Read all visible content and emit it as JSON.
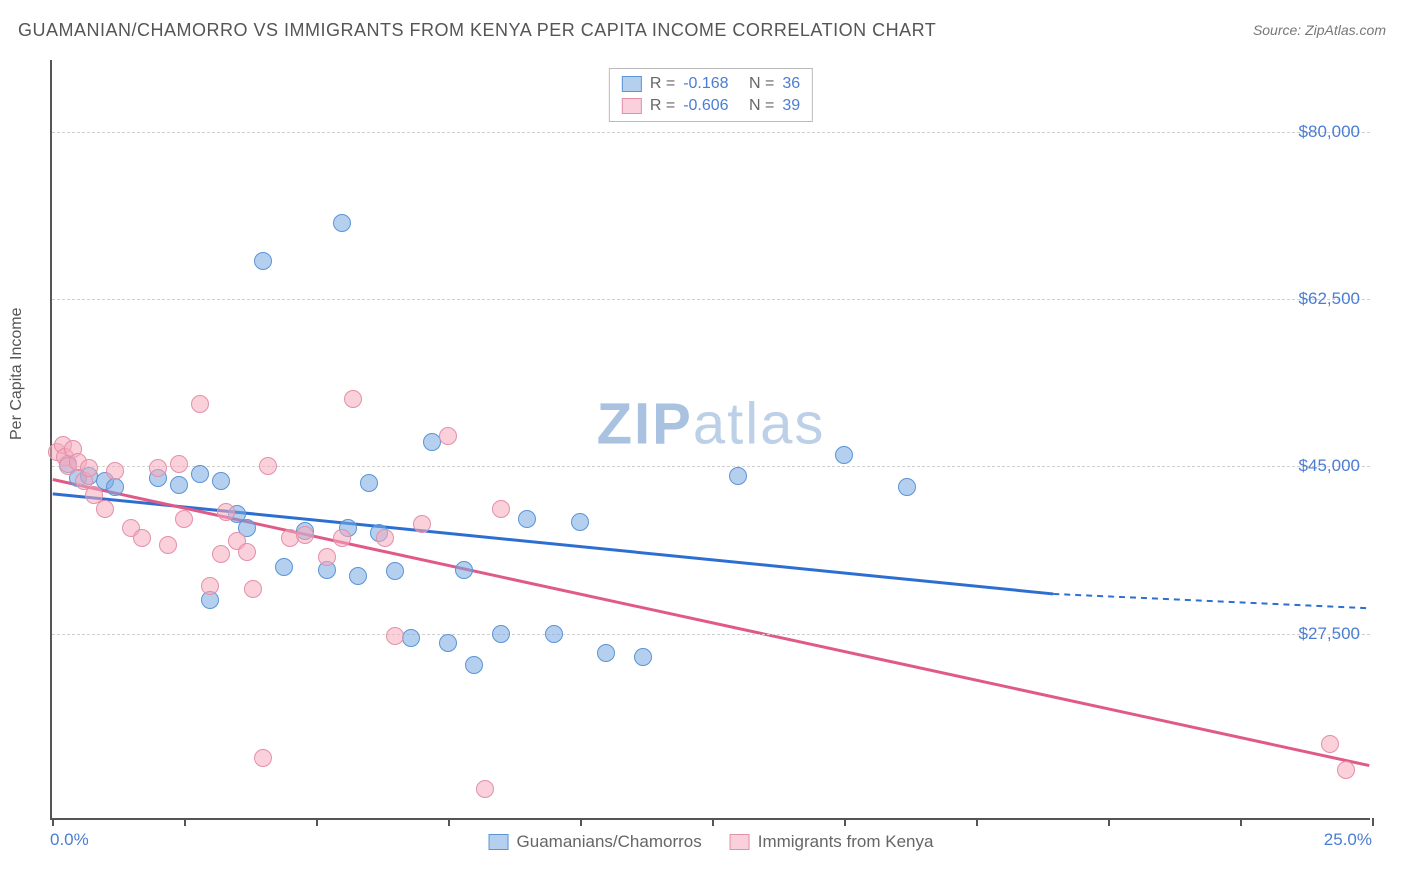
{
  "title": "GUAMANIAN/CHAMORRO VS IMMIGRANTS FROM KENYA PER CAPITA INCOME CORRELATION CHART",
  "source": "Source: ZipAtlas.com",
  "watermark_zip": "ZIP",
  "watermark_atlas": "atlas",
  "y_axis": {
    "label": "Per Capita Income",
    "min": 8000,
    "max": 87500,
    "ticks": [
      27500,
      45000,
      62500,
      80000
    ],
    "tick_labels": [
      "$27,500",
      "$45,000",
      "$62,500",
      "$80,000"
    ],
    "tick_color": "#4a7dd4",
    "grid_color": "#d0d0d0"
  },
  "x_axis": {
    "min": 0,
    "max": 25,
    "tick_positions": [
      0,
      2.5,
      5,
      7.5,
      10,
      12.5,
      15,
      17.5,
      20,
      22.5,
      25
    ],
    "left_label": "0.0%",
    "right_label": "25.0%",
    "label_color": "#4a7dd4"
  },
  "series": [
    {
      "name": "Guamanians/Chamorros",
      "fill_color": "rgba(120,170,225,0.55)",
      "stroke_color": "#5a94d6",
      "line_color": "#2d6fd1",
      "marker_radius": 9,
      "R_label": "R =",
      "R_value": "-0.168",
      "N_label": "N =",
      "N_value": "36",
      "trend": {
        "x1": 0,
        "y1": 42000,
        "x2_solid": 19,
        "y2_solid": 31500,
        "x2_dash": 25,
        "y2_dash": 30000
      },
      "points": [
        {
          "x": 0.3,
          "y": 45200
        },
        {
          "x": 0.5,
          "y": 43800
        },
        {
          "x": 0.7,
          "y": 44000
        },
        {
          "x": 1.0,
          "y": 43500
        },
        {
          "x": 1.2,
          "y": 42800
        },
        {
          "x": 2.0,
          "y": 43800
        },
        {
          "x": 2.4,
          "y": 43000
        },
        {
          "x": 2.8,
          "y": 44200
        },
        {
          "x": 3.0,
          "y": 31000
        },
        {
          "x": 3.2,
          "y": 43500
        },
        {
          "x": 3.5,
          "y": 40000
        },
        {
          "x": 3.7,
          "y": 38500
        },
        {
          "x": 4.0,
          "y": 66500
        },
        {
          "x": 4.4,
          "y": 34500
        },
        {
          "x": 4.8,
          "y": 38200
        },
        {
          "x": 5.2,
          "y": 34200
        },
        {
          "x": 5.5,
          "y": 70500
        },
        {
          "x": 5.6,
          "y": 38500
        },
        {
          "x": 5.8,
          "y": 33500
        },
        {
          "x": 6.0,
          "y": 43200
        },
        {
          "x": 6.2,
          "y": 38000
        },
        {
          "x": 6.5,
          "y": 34000
        },
        {
          "x": 6.8,
          "y": 27000
        },
        {
          "x": 7.2,
          "y": 47500
        },
        {
          "x": 7.5,
          "y": 26500
        },
        {
          "x": 7.8,
          "y": 34200
        },
        {
          "x": 8.0,
          "y": 24200
        },
        {
          "x": 8.5,
          "y": 27500
        },
        {
          "x": 9.0,
          "y": 39500
        },
        {
          "x": 9.5,
          "y": 27500
        },
        {
          "x": 10.0,
          "y": 39200
        },
        {
          "x": 10.5,
          "y": 25500
        },
        {
          "x": 11.2,
          "y": 25000
        },
        {
          "x": 13.0,
          "y": 44000
        },
        {
          "x": 15.0,
          "y": 46200
        },
        {
          "x": 16.2,
          "y": 42800
        }
      ]
    },
    {
      "name": "Immigrants from Kenya",
      "fill_color": "rgba(245,170,190,0.55)",
      "stroke_color": "#e390a8",
      "line_color": "#e05a88",
      "marker_radius": 9,
      "R_label": "R =",
      "R_value": "-0.606",
      "N_label": "N =",
      "N_value": "39",
      "trend": {
        "x1": 0,
        "y1": 43500,
        "x2_solid": 25,
        "y2_solid": 13500,
        "x2_dash": 25,
        "y2_dash": 13500
      },
      "points": [
        {
          "x": 0.1,
          "y": 46500
        },
        {
          "x": 0.2,
          "y": 47200
        },
        {
          "x": 0.25,
          "y": 46000
        },
        {
          "x": 0.3,
          "y": 45000
        },
        {
          "x": 0.4,
          "y": 46800
        },
        {
          "x": 0.5,
          "y": 45500
        },
        {
          "x": 0.6,
          "y": 43500
        },
        {
          "x": 0.7,
          "y": 44800
        },
        {
          "x": 0.8,
          "y": 42000
        },
        {
          "x": 1.0,
          "y": 40500
        },
        {
          "x": 1.2,
          "y": 44500
        },
        {
          "x": 1.5,
          "y": 38500
        },
        {
          "x": 1.7,
          "y": 37500
        },
        {
          "x": 2.0,
          "y": 44800
        },
        {
          "x": 2.2,
          "y": 36800
        },
        {
          "x": 2.4,
          "y": 45200
        },
        {
          "x": 2.5,
          "y": 39500
        },
        {
          "x": 2.8,
          "y": 51500
        },
        {
          "x": 3.0,
          "y": 32500
        },
        {
          "x": 3.2,
          "y": 35800
        },
        {
          "x": 3.3,
          "y": 40200
        },
        {
          "x": 3.5,
          "y": 37200
        },
        {
          "x": 3.7,
          "y": 36000
        },
        {
          "x": 3.8,
          "y": 32200
        },
        {
          "x": 4.0,
          "y": 14500
        },
        {
          "x": 4.1,
          "y": 45000
        },
        {
          "x": 4.5,
          "y": 37500
        },
        {
          "x": 4.8,
          "y": 37800
        },
        {
          "x": 5.2,
          "y": 35500
        },
        {
          "x": 5.5,
          "y": 37500
        },
        {
          "x": 5.7,
          "y": 52000
        },
        {
          "x": 6.3,
          "y": 37500
        },
        {
          "x": 6.5,
          "y": 27200
        },
        {
          "x": 7.0,
          "y": 39000
        },
        {
          "x": 7.5,
          "y": 48200
        },
        {
          "x": 8.2,
          "y": 11200
        },
        {
          "x": 8.5,
          "y": 40500
        },
        {
          "x": 24.2,
          "y": 16000
        },
        {
          "x": 24.5,
          "y": 13200
        }
      ]
    }
  ],
  "legend_bottom": [
    {
      "label": "Guamanians/Chamorros",
      "fill": "rgba(120,170,225,0.55)",
      "stroke": "#5a94d6"
    },
    {
      "label": "Immigrants from Kenya",
      "fill": "rgba(245,170,190,0.55)",
      "stroke": "#e390a8"
    }
  ],
  "chart_type": "scatter",
  "background_color": "#ffffff",
  "axis_color": "#555555"
}
